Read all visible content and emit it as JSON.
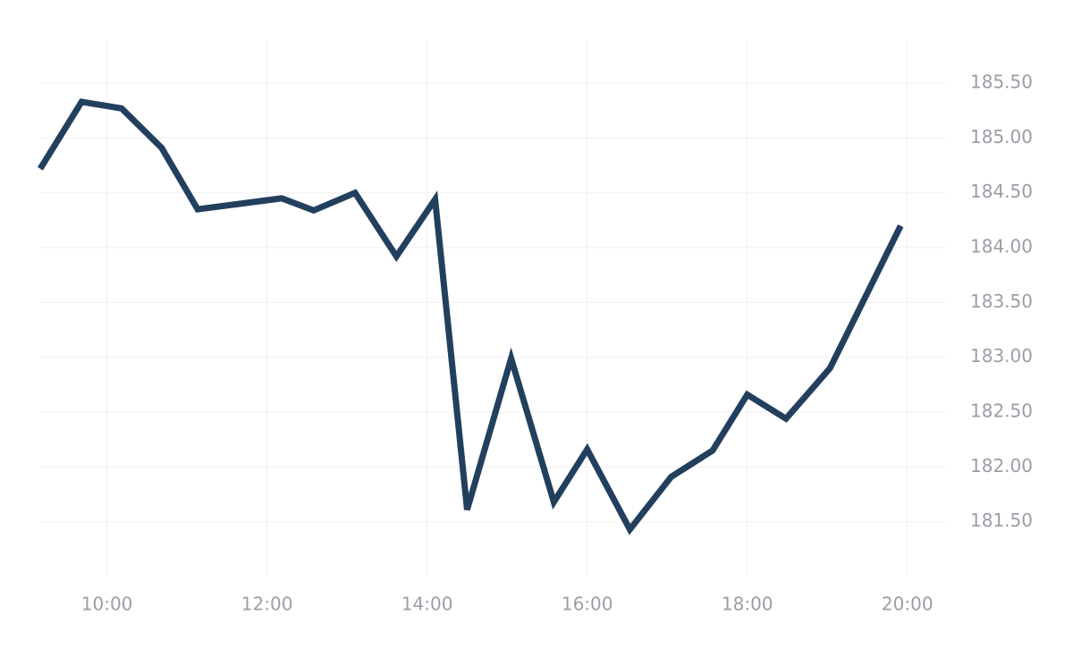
{
  "chart_data": {
    "type": "line",
    "x": [
      "09:10",
      "09:41",
      "10:11",
      "10:41",
      "11:08",
      "12:11",
      "12:35",
      "13:06",
      "13:37",
      "14:06",
      "14:30",
      "15:03",
      "15:35",
      "16:00",
      "16:32",
      "17:03",
      "17:34",
      "18:00",
      "18:29",
      "19:02",
      "19:55"
    ],
    "series": [
      {
        "color": "#22405e",
        "values": [
          184.72,
          185.33,
          185.27,
          184.91,
          184.35,
          184.45,
          184.34,
          184.5,
          183.92,
          184.44,
          181.61,
          182.99,
          181.68,
          182.16,
          181.43,
          181.91,
          182.15,
          182.66,
          182.44,
          182.9,
          184.2
        ]
      }
    ],
    "xlim": [
      "09:10",
      "20:29"
    ],
    "xticks": [
      "10:00",
      "12:00",
      "14:00",
      "16:00",
      "18:00",
      "20:00"
    ],
    "ylim": [
      181.0,
      185.9
    ],
    "yticks": [
      {
        "value": 181.5,
        "label": "181.50"
      },
      {
        "value": 182,
        "label": "182.00"
      },
      {
        "value": 182.5,
        "label": "182.50"
      },
      {
        "value": 183,
        "label": "183.00"
      },
      {
        "value": 183.5,
        "label": "183.50"
      },
      {
        "value": 184,
        "label": "184.00"
      },
      {
        "value": 184.5,
        "label": "184.50"
      },
      {
        "value": 185,
        "label": "185.00"
      },
      {
        "value": 185.5,
        "label": "185.50"
      }
    ],
    "grid": true
  }
}
